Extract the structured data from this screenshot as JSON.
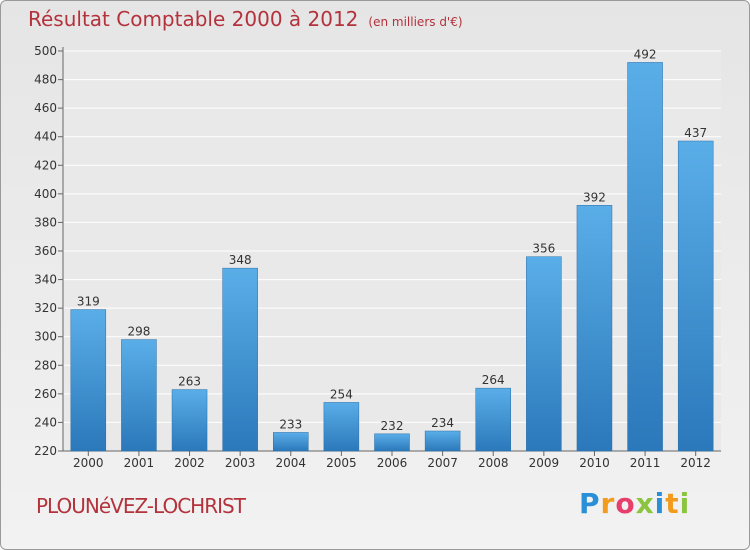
{
  "header": {
    "title": "Résultat Comptable 2000 à 2012",
    "unit": "(en milliers d'€)"
  },
  "footer": {
    "commune": "PLOUNéVEZ-LOCHRIST",
    "logo_letters": [
      "P",
      "r",
      "o",
      "x",
      "i",
      "t",
      "i"
    ],
    "logo_colors": [
      "#2a8fd6",
      "#f29b1d",
      "#e83e6c",
      "#8bc53f",
      "#2a8fd6",
      "#f29b1d",
      "#8bc53f"
    ]
  },
  "chart_data": {
    "type": "bar",
    "title": "Résultat Comptable 2000 à 2012",
    "subtitle": "(en milliers d'€)",
    "xlabel": "",
    "ylabel": "",
    "categories": [
      "2000",
      "2001",
      "2002",
      "2003",
      "2004",
      "2005",
      "2006",
      "2007",
      "2008",
      "2009",
      "2010",
      "2011",
      "2012"
    ],
    "values": [
      319,
      298,
      263,
      348,
      233,
      254,
      232,
      234,
      264,
      356,
      392,
      492,
      437
    ],
    "ylim": [
      220,
      500
    ],
    "yticks": [
      220,
      240,
      260,
      280,
      300,
      320,
      340,
      360,
      380,
      400,
      420,
      440,
      460,
      480,
      500
    ],
    "grid": true,
    "bar_color": "#3a8fd4"
  }
}
